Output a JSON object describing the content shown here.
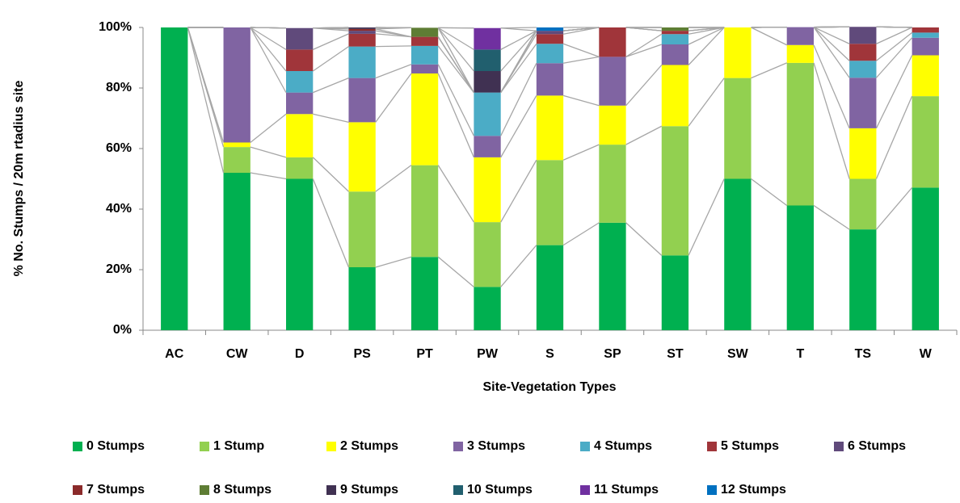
{
  "chart_data": {
    "type": "stacked_bar_percent",
    "y_label": "% No. Stumps / 20m rtadius site",
    "x_label": "Site-Vegetation Types",
    "categories": [
      "AC",
      "CW",
      "D",
      "PS",
      "PT",
      "PW",
      "S",
      "SP",
      "ST",
      "SW",
      "T",
      "TS",
      "W"
    ],
    "ylim": [
      0,
      100
    ],
    "yticks": [
      {
        "value": 0,
        "label": "0%"
      },
      {
        "value": 20,
        "label": "20%"
      },
      {
        "value": 40,
        "label": "40%"
      },
      {
        "value": 60,
        "label": "60%"
      },
      {
        "value": 80,
        "label": "80%"
      },
      {
        "value": 100,
        "label": "100%"
      }
    ],
    "series_lines": true,
    "legend": "bottom",
    "series": [
      {
        "name": "0 Stumps",
        "color": "#00b050",
        "values": [
          100,
          52,
          50,
          20.8,
          24.2,
          14.3,
          28.1,
          35.5,
          24.7,
          50,
          41.2,
          33.3,
          47.1
        ]
      },
      {
        "name": "1 Stump",
        "color": "#92d050",
        "values": [
          0,
          8.5,
          7.1,
          25,
          30.3,
          21.4,
          28.1,
          25.8,
          42.7,
          33.3,
          47.1,
          16.7,
          30.2
        ]
      },
      {
        "name": "2 Stumps",
        "color": "#ffff00",
        "values": [
          0,
          1.5,
          14.3,
          22.9,
          30.3,
          21.4,
          21.3,
          12.9,
          20.2,
          16.7,
          5.9,
          16.7,
          13.5
        ]
      },
      {
        "name": "3 Stumps",
        "color": "#8064a2",
        "values": [
          0,
          38,
          7.1,
          14.6,
          3,
          7.1,
          10.7,
          16.1,
          6.8,
          0,
          5.9,
          16.7,
          5.8
        ]
      },
      {
        "name": "4 Stumps",
        "color": "#4bacc6",
        "values": [
          0,
          0,
          7.1,
          10.4,
          6.1,
          14.3,
          6.4,
          0,
          3.4,
          0,
          0,
          5.6,
          1.7
        ]
      },
      {
        "name": "5 Stumps",
        "color": "#a0353a",
        "values": [
          0,
          0,
          7.1,
          4.2,
          3,
          0,
          3.2,
          9.7,
          1.1,
          0,
          0,
          5.6,
          1.7
        ]
      },
      {
        "name": "6 Stumps",
        "color": "#604a7b",
        "values": [
          0,
          0,
          7.1,
          1,
          0,
          0,
          1.1,
          0,
          0,
          0,
          0,
          5.6,
          0
        ]
      },
      {
        "name": "7 Stumps",
        "color": "#8b2a2a",
        "values": [
          0,
          0,
          0,
          0.6,
          0,
          0,
          0,
          0,
          0,
          0,
          0,
          0,
          0
        ]
      },
      {
        "name": "8 Stumps",
        "color": "#5e7d34",
        "values": [
          0,
          0,
          0,
          0,
          3,
          0,
          0,
          0,
          1.1,
          0,
          0,
          0,
          0
        ]
      },
      {
        "name": "9 Stumps",
        "color": "#403152",
        "values": [
          0,
          0,
          0,
          0.5,
          0,
          7.1,
          0,
          0,
          0,
          0,
          0,
          0,
          0
        ]
      },
      {
        "name": "10 Stumps",
        "color": "#215f6e",
        "values": [
          0,
          0,
          0,
          0,
          0,
          7.1,
          0,
          0,
          0,
          0,
          0,
          0,
          0
        ]
      },
      {
        "name": "11 Stumps",
        "color": "#7030a0",
        "values": [
          0,
          0,
          0,
          0,
          0,
          7.1,
          0,
          0,
          0,
          0,
          0,
          0,
          0
        ]
      },
      {
        "name": "12 Stumps",
        "color": "#0070c0",
        "values": [
          0,
          0,
          0,
          0,
          0,
          0,
          1.1,
          0,
          0,
          0,
          0,
          0,
          0
        ]
      }
    ]
  }
}
